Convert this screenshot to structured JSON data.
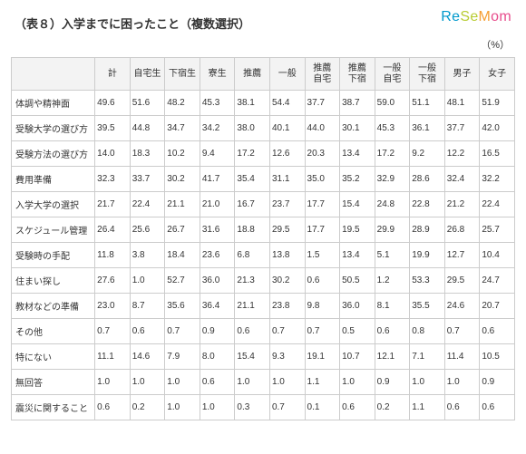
{
  "watermark": {
    "re": "Re",
    "se": "Se",
    "m": "M",
    "om": "om"
  },
  "title": "（表８）入学までに困ったこと（複数選択）",
  "unit": "（%）",
  "table": {
    "columns": [
      "",
      "計",
      "自宅生",
      "下宿生",
      "寮生",
      "推薦",
      "一般",
      "推薦\n自宅",
      "推薦\n下宿",
      "一般\n自宅",
      "一般\n下宿",
      "男子",
      "女子"
    ],
    "rows": [
      {
        "label": "体調や精神面",
        "values": [
          "49.6",
          "51.6",
          "48.2",
          "45.3",
          "38.1",
          "54.4",
          "37.7",
          "38.7",
          "59.0",
          "51.1",
          "48.1",
          "51.9"
        ]
      },
      {
        "label": "受験大学の選び方",
        "values": [
          "39.5",
          "44.8",
          "34.7",
          "34.2",
          "38.0",
          "40.1",
          "44.0",
          "30.1",
          "45.3",
          "36.1",
          "37.7",
          "42.0"
        ]
      },
      {
        "label": "受験方法の選び方",
        "values": [
          "14.0",
          "18.3",
          "10.2",
          "9.4",
          "17.2",
          "12.6",
          "20.3",
          "13.4",
          "17.2",
          "9.2",
          "12.2",
          "16.5"
        ]
      },
      {
        "label": "費用準備",
        "values": [
          "32.3",
          "33.7",
          "30.2",
          "41.7",
          "35.4",
          "31.1",
          "35.0",
          "35.2",
          "32.9",
          "28.6",
          "32.4",
          "32.2"
        ]
      },
      {
        "label": "入学大学の選択",
        "values": [
          "21.7",
          "22.4",
          "21.1",
          "21.0",
          "16.7",
          "23.7",
          "17.7",
          "15.4",
          "24.8",
          "22.8",
          "21.2",
          "22.4"
        ]
      },
      {
        "label": "スケジュール管理",
        "values": [
          "26.4",
          "25.6",
          "26.7",
          "31.6",
          "18.8",
          "29.5",
          "17.7",
          "19.5",
          "29.9",
          "28.9",
          "26.8",
          "25.7"
        ]
      },
      {
        "label": "受験時の手配",
        "values": [
          "11.8",
          "3.8",
          "18.4",
          "23.6",
          "6.8",
          "13.8",
          "1.5",
          "13.4",
          "5.1",
          "19.9",
          "12.7",
          "10.4"
        ]
      },
      {
        "label": "住まい探し",
        "values": [
          "27.6",
          "1.0",
          "52.7",
          "36.0",
          "21.3",
          "30.2",
          "0.6",
          "50.5",
          "1.2",
          "53.3",
          "29.5",
          "24.7"
        ]
      },
      {
        "label": "教材などの準備",
        "values": [
          "23.0",
          "8.7",
          "35.6",
          "36.4",
          "21.1",
          "23.8",
          "9.8",
          "36.0",
          "8.1",
          "35.5",
          "24.6",
          "20.7"
        ]
      },
      {
        "label": "その他",
        "values": [
          "0.7",
          "0.6",
          "0.7",
          "0.9",
          "0.6",
          "0.7",
          "0.7",
          "0.5",
          "0.6",
          "0.8",
          "0.7",
          "0.6"
        ]
      },
      {
        "label": "特にない",
        "values": [
          "11.1",
          "14.6",
          "7.9",
          "8.0",
          "15.4",
          "9.3",
          "19.1",
          "10.7",
          "12.1",
          "7.1",
          "11.4",
          "10.5"
        ]
      },
      {
        "label": "無回答",
        "values": [
          "1.0",
          "1.0",
          "1.0",
          "0.6",
          "1.0",
          "1.0",
          "1.1",
          "1.0",
          "0.9",
          "1.0",
          "1.0",
          "0.9"
        ]
      },
      {
        "label": "震災に関すること",
        "values": [
          "0.6",
          "0.2",
          "1.0",
          "1.0",
          "0.3",
          "0.7",
          "0.1",
          "0.6",
          "0.2",
          "1.1",
          "0.6",
          "0.6"
        ]
      }
    ]
  }
}
